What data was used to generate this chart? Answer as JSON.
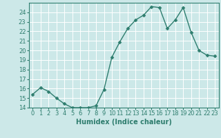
{
  "x": [
    0,
    1,
    2,
    3,
    4,
    5,
    6,
    7,
    8,
    9,
    10,
    11,
    12,
    13,
    14,
    15,
    16,
    17,
    18,
    19,
    20,
    21,
    22,
    23
  ],
  "y": [
    15.4,
    16.1,
    15.7,
    15.0,
    14.4,
    14.0,
    14.0,
    14.0,
    14.2,
    15.9,
    19.3,
    20.9,
    22.3,
    23.2,
    23.7,
    24.6,
    24.5,
    22.3,
    23.2,
    24.5,
    21.9,
    20.0,
    19.5,
    19.4
  ],
  "line_color": "#2e7d6e",
  "marker": "D",
  "marker_size": 2.5,
  "line_width": 1.0,
  "xlabel": "Humidex (Indice chaleur)",
  "xlim": [
    -0.5,
    23.5
  ],
  "ylim": [
    14,
    25
  ],
  "yticks": [
    14,
    15,
    16,
    17,
    18,
    19,
    20,
    21,
    22,
    23,
    24
  ],
  "xticks": [
    0,
    1,
    2,
    3,
    4,
    5,
    6,
    7,
    8,
    9,
    10,
    11,
    12,
    13,
    14,
    15,
    16,
    17,
    18,
    19,
    20,
    21,
    22,
    23
  ],
  "xtick_labels": [
    "0",
    "1",
    "2",
    "3",
    "4",
    "5",
    "6",
    "7",
    "8",
    "9",
    "10",
    "11",
    "12",
    "13",
    "14",
    "15",
    "16",
    "17",
    "18",
    "19",
    "20",
    "21",
    "22",
    "23"
  ],
  "bg_color": "#cce8e8",
  "grid_color": "#ffffff",
  "tick_color": "#2e7d6e",
  "label_color": "#2e7d6e",
  "font_size_tick": 6,
  "font_size_xlabel": 7
}
